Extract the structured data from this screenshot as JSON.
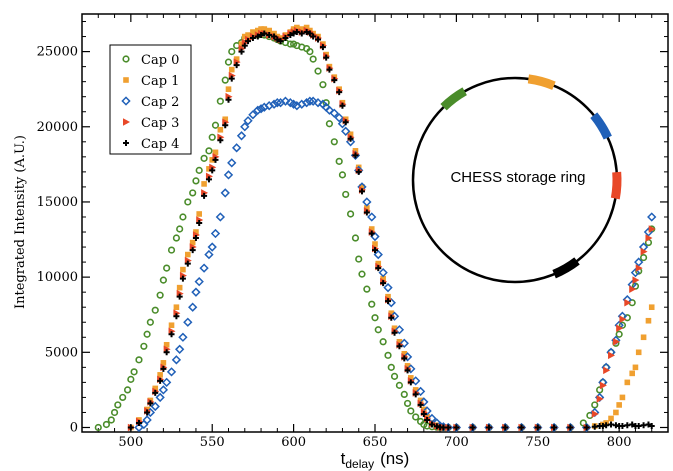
{
  "chart_data": {
    "type": "scatter",
    "title": "",
    "xlabel": "t",
    "xlabel_subscript": "delay",
    "xlabel_unit": "(ns)",
    "ylabel": "Integrated Intensity (A.U.)",
    "xlim": [
      470,
      830
    ],
    "ylim": [
      -300,
      27500
    ],
    "xticks": [
      500,
      550,
      600,
      650,
      700,
      750,
      800
    ],
    "yticks": [
      0,
      5000,
      10000,
      15000,
      20000,
      25000
    ],
    "grid": false,
    "legend_position": "top-left",
    "series": [
      {
        "name": "Cap 0",
        "color": "#4a8c2a",
        "marker": "circle-open",
        "x": [
          480,
          485,
          488,
          490,
          492,
          495,
          498,
          500,
          502,
          505,
          508,
          510,
          512,
          515,
          518,
          520,
          522,
          525,
          528,
          530,
          532,
          535,
          538,
          540,
          542,
          545,
          548,
          550,
          552,
          555,
          558,
          560,
          562,
          565,
          568,
          570,
          572,
          575,
          578,
          580,
          582,
          585,
          588,
          590,
          592,
          595,
          598,
          600,
          602,
          605,
          608,
          610,
          612,
          615,
          618,
          620,
          622,
          625,
          628,
          630,
          632,
          635,
          638,
          640,
          642,
          645,
          648,
          650,
          652,
          655,
          658,
          660,
          662,
          665,
          668,
          670,
          672,
          675,
          678,
          680,
          682,
          685,
          688,
          690,
          692,
          695,
          700,
          710,
          720,
          730,
          740,
          750,
          760,
          770,
          778,
          782,
          785,
          788,
          790,
          792,
          795,
          798,
          800,
          802,
          805,
          808,
          810,
          812,
          815,
          818,
          820
        ],
        "y": [
          0,
          200,
          500,
          1000,
          1500,
          2000,
          2500,
          3200,
          3700,
          4500,
          5400,
          6200,
          7000,
          7800,
          8800,
          9800,
          10600,
          11800,
          12600,
          13200,
          14000,
          15000,
          15600,
          16400,
          17100,
          17900,
          18400,
          19300,
          20100,
          21700,
          23100,
          24300,
          25000,
          25400,
          25600,
          25900,
          26000,
          26100,
          26100,
          26200,
          26100,
          26000,
          25900,
          25800,
          25700,
          25600,
          25500,
          25500,
          25400,
          25300,
          25200,
          25000,
          24500,
          23700,
          22800,
          21600,
          20200,
          19000,
          17700,
          16800,
          15500,
          14200,
          12600,
          11200,
          10200,
          9200,
          8200,
          7300,
          6500,
          5700,
          4800,
          4000,
          3400,
          2800,
          2200,
          1600,
          1100,
          700,
          400,
          200,
          100,
          50,
          20,
          0,
          0,
          0,
          0,
          0,
          0,
          0,
          0,
          0,
          0,
          0,
          300,
          800,
          1500,
          2500,
          3000,
          4000,
          5000,
          5600,
          6200,
          6800,
          7300,
          8300,
          9400,
          10400,
          11300,
          12300,
          13200
        ]
      },
      {
        "name": "Cap 1",
        "color": "#f0a030",
        "marker": "square",
        "x": [
          500,
          505,
          510,
          512,
          515,
          518,
          520,
          522,
          525,
          528,
          530,
          532,
          535,
          538,
          540,
          542,
          545,
          548,
          550,
          552,
          555,
          558,
          560,
          562,
          565,
          568,
          570,
          572,
          575,
          578,
          580,
          582,
          585,
          588,
          590,
          592,
          595,
          598,
          600,
          602,
          605,
          608,
          610,
          612,
          615,
          618,
          620,
          622,
          625,
          628,
          630,
          632,
          635,
          638,
          640,
          642,
          645,
          648,
          650,
          652,
          655,
          658,
          660,
          662,
          665,
          668,
          670,
          672,
          675,
          678,
          680,
          682,
          685,
          688,
          690,
          692,
          695,
          700,
          710,
          720,
          730,
          740,
          750,
          760,
          770,
          780,
          785,
          790,
          792,
          795,
          798,
          800,
          802,
          805,
          808,
          810,
          812,
          815,
          818,
          820
        ],
        "y": [
          0,
          500,
          1200,
          1800,
          2600,
          3500,
          4300,
          5500,
          6800,
          8000,
          9300,
          10500,
          11500,
          12300,
          13000,
          14200,
          16200,
          17200,
          17800,
          18300,
          19800,
          20500,
          22500,
          23800,
          24500,
          25500,
          26000,
          26100,
          26300,
          26400,
          26500,
          26500,
          26400,
          26200,
          26000,
          25900,
          26100,
          26300,
          26500,
          26600,
          26500,
          26600,
          26400,
          26200,
          26000,
          25500,
          24800,
          24000,
          23300,
          22500,
          21600,
          20500,
          19500,
          18400,
          17300,
          16000,
          14600,
          13200,
          12200,
          10900,
          9900,
          8700,
          7600,
          6600,
          5700,
          4900,
          4100,
          3300,
          2500,
          1800,
          1200,
          700,
          300,
          150,
          50,
          0,
          0,
          0,
          0,
          0,
          0,
          0,
          0,
          0,
          0,
          0,
          100,
          200,
          300,
          600,
          1000,
          1500,
          2000,
          3000,
          3600,
          4000,
          5000,
          6000,
          7100,
          8000
        ]
      },
      {
        "name": "Cap 2",
        "color": "#2060b8",
        "marker": "diamond-open",
        "x": [
          505,
          508,
          510,
          512,
          515,
          518,
          520,
          522,
          525,
          528,
          530,
          532,
          535,
          538,
          540,
          542,
          545,
          548,
          550,
          552,
          555,
          558,
          560,
          562,
          565,
          568,
          570,
          572,
          575,
          578,
          580,
          582,
          585,
          588,
          590,
          592,
          595,
          598,
          600,
          602,
          605,
          608,
          610,
          612,
          615,
          618,
          620,
          622,
          625,
          628,
          630,
          632,
          635,
          638,
          640,
          642,
          645,
          648,
          650,
          652,
          655,
          658,
          660,
          662,
          665,
          668,
          670,
          672,
          675,
          678,
          680,
          682,
          685,
          688,
          690,
          692,
          695,
          700,
          710,
          720,
          730,
          740,
          750,
          760,
          770,
          780,
          785,
          788,
          790,
          792,
          795,
          798,
          800,
          802,
          805,
          808,
          810,
          812,
          815,
          818,
          820
        ],
        "y": [
          0,
          200,
          500,
          1000,
          1400,
          2000,
          2500,
          3000,
          3700,
          4500,
          5200,
          6000,
          7000,
          8000,
          9000,
          9700,
          10600,
          11500,
          12000,
          12900,
          14000,
          15600,
          16800,
          17600,
          18600,
          19400,
          20000,
          20400,
          20800,
          21100,
          21200,
          21300,
          21400,
          21500,
          21600,
          21600,
          21700,
          21600,
          21500,
          21400,
          21500,
          21600,
          21700,
          21700,
          21600,
          21500,
          21300,
          21100,
          20900,
          20600,
          20200,
          19700,
          19000,
          18100,
          17100,
          16000,
          15000,
          14000,
          12700,
          11500,
          10300,
          9300,
          8300,
          7400,
          6500,
          5600,
          4700,
          3900,
          3100,
          2400,
          1700,
          1100,
          600,
          300,
          100,
          50,
          0,
          0,
          0,
          0,
          0,
          0,
          0,
          0,
          0,
          0,
          1000,
          2000,
          3000,
          4000,
          5000,
          5800,
          6800,
          7400,
          8500,
          9500,
          10300,
          11000,
          12000,
          13000,
          14000
        ]
      },
      {
        "name": "Cap 3",
        "color": "#e84828",
        "marker": "triangle-right",
        "x": [
          500,
          505,
          510,
          512,
          515,
          518,
          520,
          522,
          525,
          528,
          530,
          532,
          535,
          538,
          540,
          542,
          545,
          548,
          550,
          552,
          555,
          558,
          560,
          562,
          565,
          568,
          570,
          572,
          575,
          578,
          580,
          582,
          585,
          588,
          590,
          592,
          595,
          598,
          600,
          602,
          605,
          608,
          610,
          612,
          615,
          618,
          620,
          622,
          625,
          628,
          630,
          632,
          635,
          638,
          640,
          642,
          645,
          648,
          650,
          652,
          655,
          658,
          660,
          662,
          665,
          668,
          670,
          672,
          675,
          678,
          680,
          682,
          685,
          688,
          690,
          692,
          695,
          700,
          710,
          720,
          730,
          740,
          750,
          760,
          770,
          780,
          785,
          788,
          790,
          792,
          795,
          798,
          800,
          802,
          805,
          808,
          810,
          812,
          815,
          818,
          820
        ],
        "y": [
          0,
          400,
          1100,
          1700,
          2400,
          3200,
          4000,
          5200,
          6400,
          7600,
          8900,
          10100,
          11100,
          12000,
          12800,
          13800,
          15600,
          16700,
          17300,
          18000,
          19300,
          20300,
          22000,
          23400,
          24300,
          25200,
          25600,
          25800,
          26000,
          26100,
          26200,
          26200,
          26100,
          26000,
          25900,
          25800,
          26000,
          26200,
          26300,
          26400,
          26300,
          26400,
          26300,
          26100,
          25900,
          25400,
          24700,
          23900,
          23200,
          22400,
          21500,
          20400,
          19300,
          18200,
          17100,
          15800,
          14400,
          13000,
          11900,
          10700,
          9700,
          8500,
          7400,
          6400,
          5500,
          4700,
          3900,
          3100,
          2300,
          1600,
          1000,
          600,
          250,
          100,
          30,
          0,
          0,
          0,
          0,
          0,
          0,
          0,
          0,
          0,
          0,
          0,
          900,
          1900,
          2800,
          3800,
          4800,
          5700,
          6600,
          7200,
          8300,
          9200,
          9800,
          10600,
          11700,
          12600,
          13200
        ]
      },
      {
        "name": "Cap 4",
        "color": "#000000",
        "marker": "plus",
        "x": [
          500,
          505,
          510,
          512,
          515,
          518,
          520,
          522,
          525,
          528,
          530,
          532,
          535,
          538,
          540,
          542,
          545,
          548,
          550,
          552,
          555,
          558,
          560,
          562,
          565,
          568,
          570,
          572,
          575,
          578,
          580,
          582,
          585,
          588,
          590,
          592,
          595,
          598,
          600,
          602,
          605,
          608,
          610,
          612,
          615,
          618,
          620,
          622,
          625,
          628,
          630,
          632,
          635,
          638,
          640,
          642,
          645,
          648,
          650,
          652,
          655,
          658,
          660,
          662,
          665,
          668,
          670,
          672,
          675,
          678,
          680,
          682,
          685,
          688,
          690,
          692,
          695,
          700,
          710,
          720,
          730,
          740,
          750,
          760,
          770,
          780,
          785,
          788,
          790,
          792,
          795,
          798,
          800,
          802,
          805,
          808,
          810,
          812,
          815,
          818,
          820
        ],
        "y": [
          0,
          300,
          1000,
          1600,
          2300,
          3100,
          3900,
          5000,
          6200,
          7400,
          8700,
          9900,
          10900,
          11800,
          12600,
          13600,
          15400,
          16500,
          17100,
          17800,
          19100,
          20100,
          21800,
          23200,
          24100,
          25000,
          25400,
          25700,
          25900,
          26000,
          26100,
          26200,
          26100,
          26000,
          25800,
          25700,
          25900,
          26100,
          26200,
          26300,
          26200,
          26300,
          26200,
          26000,
          25800,
          25300,
          24600,
          23800,
          23100,
          22300,
          21400,
          20300,
          19200,
          18100,
          17000,
          15700,
          14300,
          12900,
          11800,
          10600,
          9600,
          8400,
          7300,
          6300,
          5400,
          4600,
          3800,
          3000,
          2200,
          1500,
          900,
          500,
          200,
          80,
          20,
          0,
          0,
          0,
          0,
          0,
          0,
          0,
          0,
          0,
          0,
          0,
          50,
          100,
          100,
          150,
          200,
          150,
          100,
          100,
          150,
          200,
          100,
          100,
          150,
          200,
          100
        ]
      }
    ],
    "inset": {
      "label": "CHESS storage ring",
      "markers": [
        {
          "series": "Cap 0",
          "color": "#4a8c2a",
          "angle_deg": 127
        },
        {
          "series": "Cap 1",
          "color": "#f0a030",
          "angle_deg": 75
        },
        {
          "series": "Cap 2",
          "color": "#2060b8",
          "angle_deg": 32
        },
        {
          "series": "Cap 3",
          "color": "#e84828",
          "angle_deg": -3
        },
        {
          "series": "Cap 4",
          "color": "#000000",
          "angle_deg": -60
        }
      ]
    }
  }
}
